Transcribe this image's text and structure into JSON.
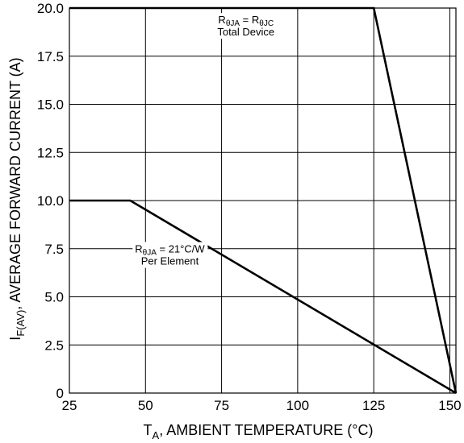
{
  "chart_data": {
    "type": "line",
    "xlabel": {
      "main": "T",
      "sub": "A",
      "rest": ", AMBIENT TEMPERATURE (°C)"
    },
    "ylabel": {
      "main": "I",
      "sub": "F(AV)",
      "rest": ", AVERAGE FORWARD CURRENT (A)"
    },
    "xlim": [
      25,
      152
    ],
    "ylim": [
      0,
      20
    ],
    "x_ticks": [
      25,
      50,
      75,
      100,
      125,
      150
    ],
    "x_tick_labels": [
      "25",
      "50",
      "75",
      "100",
      "125",
      "150"
    ],
    "y_ticks": [
      0,
      2.5,
      5,
      7.5,
      10,
      12.5,
      15,
      17.5,
      20
    ],
    "y_tick_labels": [
      "0",
      "2.5",
      "5.0",
      "7.5",
      "10.0",
      "12.5",
      "15.0",
      "17.5",
      "20.0"
    ],
    "grid": true,
    "series": [
      {
        "x": [
          25,
          125,
          152
        ],
        "y": [
          20,
          20,
          0
        ]
      },
      {
        "x": [
          25,
          45,
          152
        ],
        "y": [
          10,
          10,
          0
        ]
      }
    ],
    "annotations": [
      {
        "lines": [
          {
            "parts": [
              [
                "R",
                ""
              ],
              [
                "θJA",
                "sub"
              ],
              [
                " = R",
                ""
              ],
              [
                "θJC",
                "sub"
              ]
            ]
          },
          {
            "parts": [
              [
                "Total Device",
                ""
              ]
            ]
          }
        ],
        "x": 83,
        "y": 19.2
      },
      {
        "lines": [
          {
            "parts": [
              [
                "R",
                ""
              ],
              [
                "θJA",
                "sub"
              ],
              [
                " = 21°C/W",
                ""
              ]
            ]
          },
          {
            "parts": [
              [
                "Per Element",
                ""
              ]
            ]
          }
        ],
        "x": 58,
        "y": 7.3
      }
    ]
  }
}
